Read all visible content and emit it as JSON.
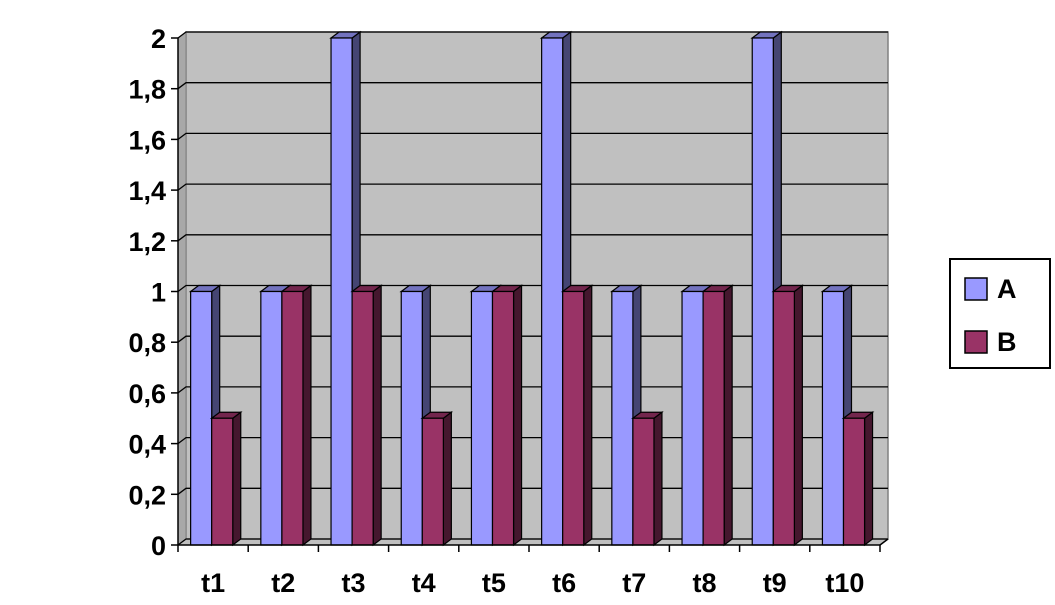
{
  "chart_data": {
    "type": "bar",
    "categories": [
      "t1",
      "t2",
      "t3",
      "t4",
      "t5",
      "t6",
      "t7",
      "t8",
      "t9",
      "t10"
    ],
    "series": [
      {
        "name": "A",
        "values": [
          1,
          1,
          2,
          1,
          1,
          2,
          1,
          1,
          2,
          1
        ],
        "color": "#9999ff"
      },
      {
        "name": "B",
        "values": [
          0.5,
          1,
          1,
          0.5,
          1,
          1,
          0.5,
          1,
          1,
          0.5
        ],
        "color": "#993366"
      }
    ],
    "y_ticks": [
      "0",
      "0,2",
      "0,4",
      "0,6",
      "0,8",
      "1",
      "1,2",
      "1,4",
      "1,6",
      "1,8",
      "2"
    ],
    "ylim": [
      0,
      2
    ],
    "grid": true,
    "plot_background": "#c0c0c0",
    "legend_position": "right",
    "style": "3d-clustered-column"
  }
}
